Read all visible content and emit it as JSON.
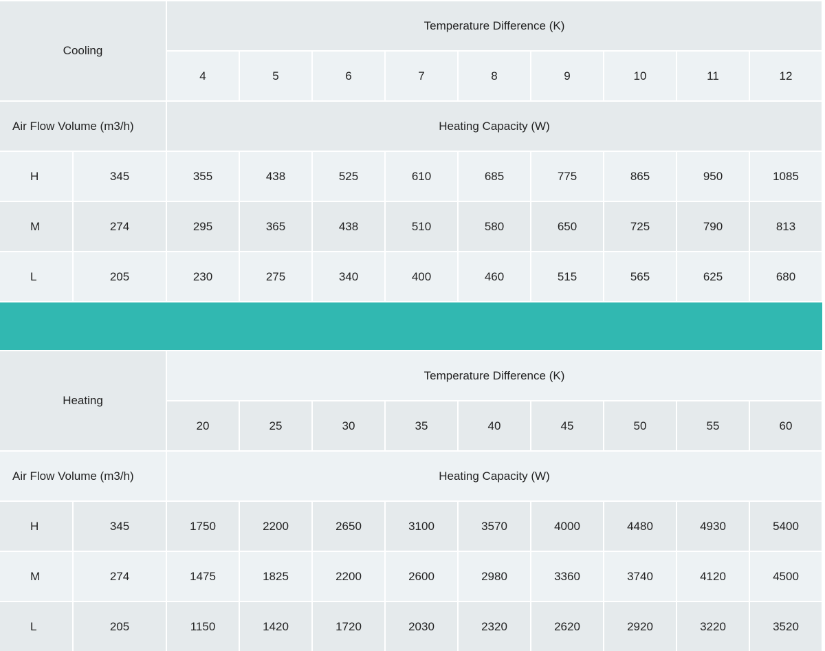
{
  "colors": {
    "teal": "#31b8b1",
    "dark_cell": "#e5eaec",
    "light_cell": "#edf2f4"
  },
  "cooling": {
    "title": "Cooling",
    "temp_header": "Temperature Difference (K)",
    "temps": [
      "4",
      "5",
      "6",
      "7",
      "8",
      "9",
      "10",
      "11",
      "12"
    ],
    "airflow_label": "Air Flow Volume  (m3/h)",
    "capacity_header": "Heating Capacity (W)",
    "rows": [
      {
        "speed": "H",
        "airflow": "345",
        "values": [
          "355",
          "438",
          "525",
          "610",
          "685",
          "775",
          "865",
          "950",
          "1085"
        ]
      },
      {
        "speed": "M",
        "airflow": "274",
        "values": [
          "295",
          "365",
          "438",
          "510",
          "580",
          "650",
          "725",
          "790",
          "813"
        ]
      },
      {
        "speed": "L",
        "airflow": "205",
        "values": [
          "230",
          "275",
          "340",
          "400",
          "460",
          "515",
          "565",
          "625",
          "680"
        ]
      }
    ]
  },
  "heating": {
    "title": "Heating",
    "temp_header": "Temperature Difference (K)",
    "temps": [
      "20",
      "25",
      "30",
      "35",
      "40",
      "45",
      "50",
      "55",
      "60"
    ],
    "airflow_label": "Air Flow Volume  (m3/h)",
    "capacity_header": "Heating Capacity (W)",
    "rows": [
      {
        "speed": "H",
        "airflow": "345",
        "values": [
          "1750",
          "2200",
          "2650",
          "3100",
          "3570",
          "4000",
          "4480",
          "4930",
          "5400"
        ]
      },
      {
        "speed": "M",
        "airflow": "274",
        "values": [
          "1475",
          "1825",
          "2200",
          "2600",
          "2980",
          "3360",
          "3740",
          "4120",
          "4500"
        ]
      },
      {
        "speed": "L",
        "airflow": "205",
        "values": [
          "1150",
          "1420",
          "1720",
          "2030",
          "2320",
          "2620",
          "2920",
          "3220",
          "3520"
        ]
      }
    ]
  }
}
